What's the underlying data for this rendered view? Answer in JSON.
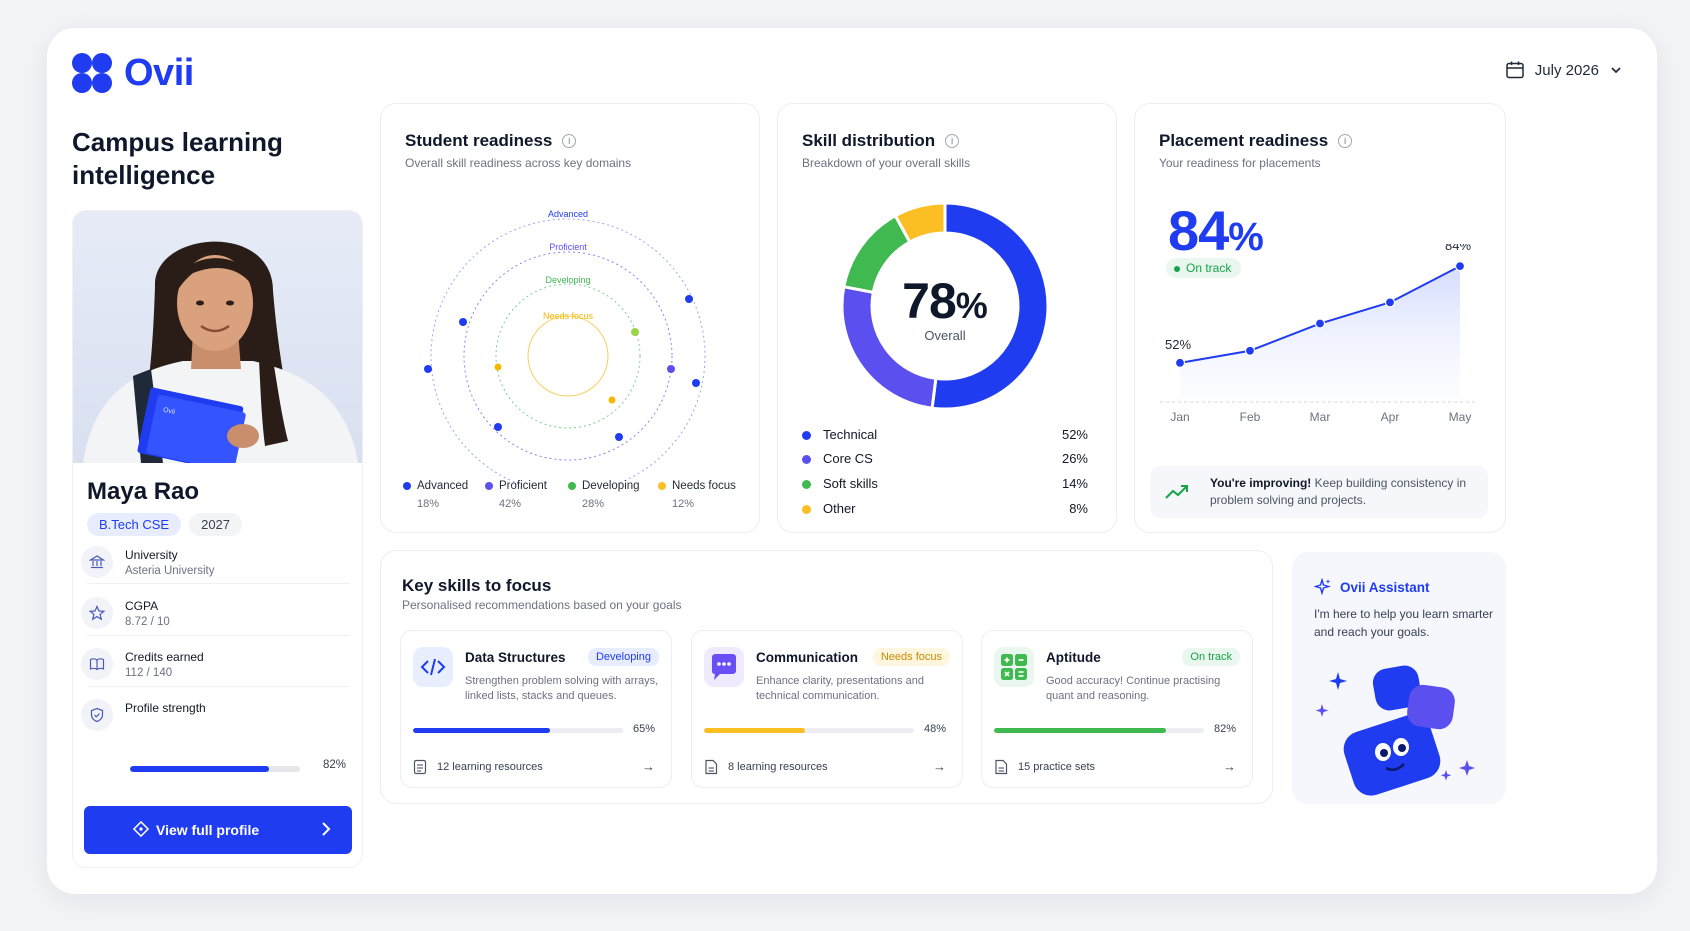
{
  "brand": {
    "name": "Ovii",
    "color": "#1f3cf0"
  },
  "header": {
    "date_label": "July 2026",
    "headline": "Campus learning intelligence"
  },
  "profile": {
    "name": "Maya Rao",
    "program": "B.Tech CSE",
    "year": "2027",
    "book_label": "Ovii",
    "university_label": "University",
    "university_value": "Asteria University",
    "cgpa_label": "CGPA",
    "cgpa_value": "8.72 / 10",
    "credits_label": "Credits earned",
    "credits_value": "112 / 140",
    "strength_label": "Profile strength",
    "strength_pct_text": "82%",
    "strength_value": 0.82,
    "button_label": "View full profile"
  },
  "readiness": {
    "title": "Student readiness",
    "subtitle": "Overall skill readiness across key domains",
    "ring_labels": [
      "Advanced",
      "Proficient",
      "Developing",
      "Needs focus"
    ],
    "legend": [
      {
        "name": "Advanced",
        "pct": "18%",
        "color": "#1f3cf0"
      },
      {
        "name": "Proficient",
        "pct": "42%",
        "color": "#5b4ff0"
      },
      {
        "name": "Developing",
        "pct": "28%",
        "color": "#3fb950"
      },
      {
        "name": "Needs focus",
        "pct": "12%",
        "color": "#fbbf24"
      }
    ]
  },
  "skills": {
    "title": "Skill distribution",
    "subtitle": "Breakdown of your overall skills",
    "center_value": "78",
    "center_unit": "%",
    "center_label": "Overall",
    "chart_data": {
      "type": "pie",
      "categories": [
        "Technical",
        "Core CS",
        "Soft skills",
        "Other"
      ],
      "values": [
        52,
        26,
        14,
        8
      ],
      "colors": [
        "#1f3cf0",
        "#5b4ff0",
        "#3fb950",
        "#fbbf24"
      ]
    },
    "legend": [
      {
        "name": "Technical",
        "pct": "52%",
        "color": "#1f3cf0"
      },
      {
        "name": "Core CS",
        "pct": "26%",
        "color": "#5b4ff0"
      },
      {
        "name": "Soft skills",
        "pct": "14%",
        "color": "#3fb950"
      },
      {
        "name": "Other",
        "pct": "8%",
        "color": "#fbbf24"
      }
    ]
  },
  "placement": {
    "title": "Placement readiness",
    "subtitle": "Your readiness for placements",
    "big_value": "84",
    "big_unit": "%",
    "status": "On track",
    "start_label": "52%",
    "end_label": "84%",
    "improve_bold": "You're improving!",
    "improve_text": "Keep building consistency in problem solving and projects.",
    "chart_data": {
      "type": "line",
      "categories": [
        "Jan",
        "Feb",
        "Mar",
        "Apr",
        "May"
      ],
      "series": [
        {
          "values": [
            52,
            56,
            65,
            72,
            84
          ]
        }
      ],
      "data_labels": {
        "first": "52%",
        "last": "84%"
      }
    }
  },
  "key_skills": {
    "title": "Key skills to focus",
    "subtitle": "Personalised recommendations based on your goals",
    "items": [
      {
        "name": "Data Structures",
        "badge": "Developing",
        "desc": "Strengthen problem solving with arrays, linked lists, stacks and queues.",
        "pct_text": "65%",
        "value": 0.65,
        "resources": "12 learning resources",
        "color": "#1f3cf0",
        "badge_bg": "#e7ecff",
        "badge_fg": "#1f3cf0",
        "icon": "code-icon"
      },
      {
        "name": "Communication",
        "badge": "Needs focus",
        "desc": "Enhance clarity, presentations and technical communication.",
        "pct_text": "48%",
        "value": 0.48,
        "resources": "8 learning resources",
        "color": "#fbbf24",
        "badge_bg": "#fff6e0",
        "badge_fg": "#c98a00",
        "icon": "chat-icon"
      },
      {
        "name": "Aptitude",
        "badge": "On track",
        "desc": "Good accuracy! Continue practising quant and reasoning.",
        "pct_text": "82%",
        "value": 0.82,
        "resources": "15 practice sets",
        "color": "#3fb950",
        "badge_bg": "#eaf7ef",
        "badge_fg": "#16a34a",
        "icon": "grid-icon"
      }
    ]
  },
  "assistant": {
    "title": "Ovii Assistant",
    "desc": "I'm here to help you learn smarter and reach your goals."
  }
}
